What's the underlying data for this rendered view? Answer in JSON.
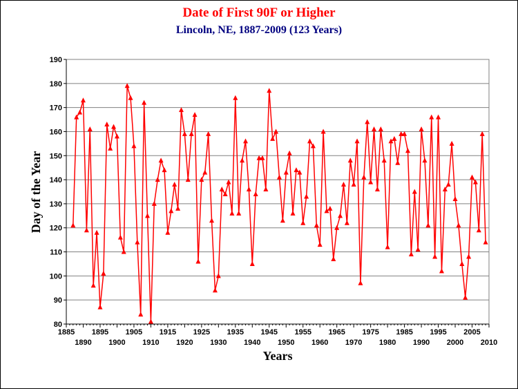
{
  "chart_data": {
    "type": "line",
    "title": "Date of First 90F or Higher",
    "subtitle": "Lincoln, NE, 1887-2009 (123 Years)",
    "xlabel": "Years",
    "ylabel": "Day of the Year",
    "xlim": [
      1885,
      2010
    ],
    "ylim": [
      80,
      190
    ],
    "y_ticks": [
      80,
      90,
      100,
      110,
      120,
      130,
      140,
      150,
      160,
      170,
      180,
      190
    ],
    "x_ticks": [
      1885,
      1890,
      1895,
      1900,
      1905,
      1910,
      1915,
      1920,
      1925,
      1930,
      1935,
      1940,
      1945,
      1950,
      1955,
      1960,
      1965,
      1970,
      1975,
      1980,
      1985,
      1990,
      1995,
      2000,
      2005,
      2010
    ],
    "grid": true,
    "marker": "triangle",
    "color": "#ff0000",
    "x": [
      1887,
      1888,
      1889,
      1890,
      1891,
      1892,
      1893,
      1894,
      1895,
      1896,
      1897,
      1898,
      1899,
      1900,
      1901,
      1902,
      1903,
      1904,
      1905,
      1906,
      1907,
      1908,
      1909,
      1910,
      1911,
      1912,
      1913,
      1914,
      1915,
      1916,
      1917,
      1918,
      1919,
      1920,
      1921,
      1922,
      1923,
      1924,
      1925,
      1926,
      1927,
      1928,
      1929,
      1930,
      1931,
      1932,
      1933,
      1934,
      1935,
      1936,
      1937,
      1938,
      1939,
      1940,
      1941,
      1942,
      1943,
      1944,
      1945,
      1946,
      1947,
      1948,
      1949,
      1950,
      1951,
      1952,
      1953,
      1954,
      1955,
      1956,
      1957,
      1958,
      1959,
      1960,
      1961,
      1962,
      1963,
      1964,
      1965,
      1966,
      1967,
      1968,
      1969,
      1970,
      1971,
      1972,
      1973,
      1974,
      1975,
      1976,
      1977,
      1978,
      1979,
      1980,
      1981,
      1982,
      1983,
      1984,
      1985,
      1986,
      1987,
      1988,
      1989,
      1990,
      1991,
      1992,
      1993,
      1994,
      1995,
      1996,
      1997,
      1998,
      1999,
      2000,
      2001,
      2002,
      2003,
      2004,
      2005,
      2006,
      2007,
      2008,
      2009
    ],
    "values": [
      121,
      166,
      168,
      173,
      119,
      161,
      96,
      118,
      87,
      101,
      163,
      153,
      162,
      158,
      116,
      110,
      179,
      174,
      154,
      114,
      84,
      172,
      125,
      81,
      130,
      140,
      148,
      144,
      118,
      127,
      138,
      128,
      169,
      159,
      140,
      159,
      167,
      106,
      140,
      143,
      159,
      123,
      94,
      100,
      136,
      134,
      139,
      126,
      174,
      126,
      148,
      156,
      136,
      105,
      134,
      149,
      149,
      136,
      177,
      157,
      160,
      141,
      123,
      143,
      151,
      126,
      144,
      143,
      122,
      133,
      156,
      154,
      121,
      113,
      160,
      127,
      128,
      107,
      120,
      125,
      138,
      122,
      148,
      138,
      156,
      97,
      141,
      164,
      139,
      161,
      136,
      161,
      148,
      112,
      156,
      157,
      147,
      159,
      159,
      152,
      109,
      135,
      111,
      161,
      148,
      121,
      166,
      108,
      166,
      102,
      136,
      138,
      155,
      132,
      121,
      105,
      91,
      108,
      141,
      139,
      119,
      159,
      114
    ]
  }
}
